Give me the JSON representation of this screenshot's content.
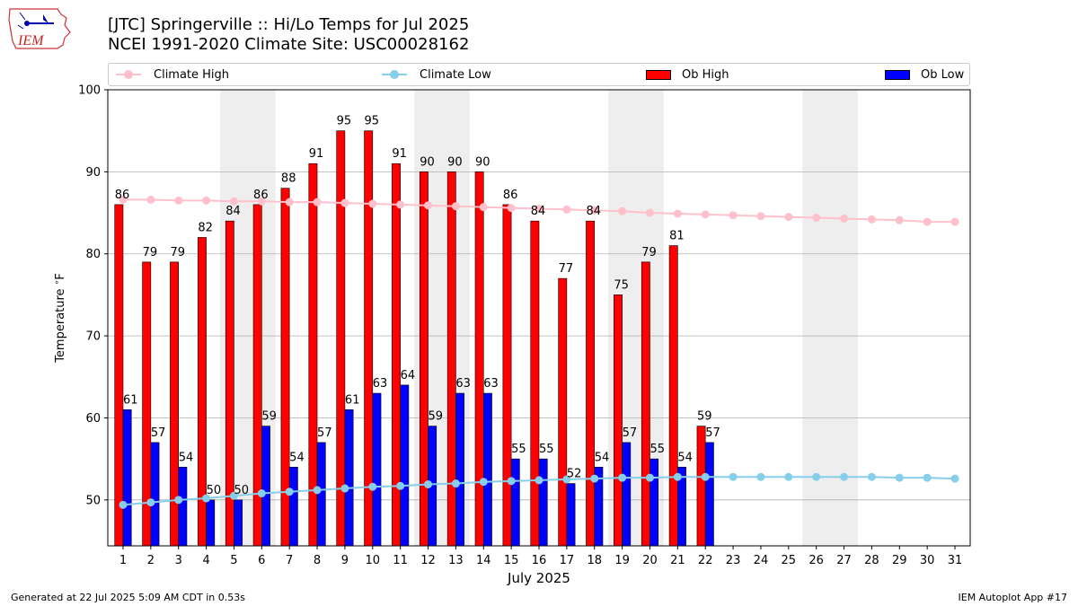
{
  "header": {
    "title_line1": "[JTC] Springerville :: Hi/Lo Temps for Jul 2025",
    "title_line2": "NCEI 1991-2020 Climate Site: USC00028162",
    "logo_text": "IEM"
  },
  "legend": {
    "climate_high": "Climate High",
    "climate_low": "Climate Low",
    "ob_high": "Ob High",
    "ob_low": "Ob Low"
  },
  "footer": {
    "generated": "Generated at 22 Jul 2025 5:09 AM CDT in 0.53s",
    "app": "IEM Autoplot App #17"
  },
  "colors": {
    "ob_high": "#ff0000",
    "ob_low": "#0000ff",
    "climate_high": "#ffc0cb",
    "climate_low": "#87ceeb",
    "weekend_shade": "#eeeeee",
    "grid": "#b0b0b0"
  },
  "chart_data": {
    "type": "bar",
    "title": "[JTC] Springerville :: Hi/Lo Temps for Jul 2025",
    "xlabel": "July 2025",
    "ylabel": "Temperature $^\\circ$F",
    "ylim": [
      44.4,
      100
    ],
    "yticks": [
      50,
      60,
      70,
      80,
      90,
      100
    ],
    "grid": "y",
    "legend_position": "top",
    "days": [
      1,
      2,
      3,
      4,
      5,
      6,
      7,
      8,
      9,
      10,
      11,
      12,
      13,
      14,
      15,
      16,
      17,
      18,
      19,
      20,
      21,
      22,
      23,
      24,
      25,
      26,
      27,
      28,
      29,
      30,
      31
    ],
    "shaded_days": [
      [
        5,
        6
      ],
      [
        12,
        13
      ],
      [
        19,
        20
      ],
      [
        26,
        27
      ]
    ],
    "series": [
      {
        "name": "Ob High",
        "kind": "bar",
        "values": [
          86,
          79,
          79,
          82,
          84,
          86,
          88,
          91,
          95,
          95,
          91,
          90,
          90,
          90,
          86,
          84,
          77,
          84,
          75,
          79,
          81,
          59
        ]
      },
      {
        "name": "Ob Low",
        "kind": "bar",
        "values": [
          61,
          57,
          54,
          50,
          50,
          59,
          54,
          57,
          61,
          63,
          64,
          59,
          63,
          63,
          55,
          55,
          52,
          54,
          57,
          55,
          54,
          57
        ]
      },
      {
        "name": "Climate High",
        "kind": "line",
        "values": [
          86.6,
          86.6,
          86.5,
          86.5,
          86.4,
          86.4,
          86.3,
          86.3,
          86.2,
          86.1,
          86.0,
          85.9,
          85.8,
          85.7,
          85.6,
          85.5,
          85.4,
          85.3,
          85.2,
          85.0,
          84.9,
          84.8,
          84.7,
          84.6,
          84.5,
          84.4,
          84.3,
          84.2,
          84.1,
          83.9,
          83.9
        ]
      },
      {
        "name": "Climate Low",
        "kind": "line",
        "values": [
          49.4,
          49.7,
          50.0,
          50.2,
          50.5,
          50.8,
          51.0,
          51.2,
          51.4,
          51.6,
          51.7,
          51.9,
          52.0,
          52.2,
          52.3,
          52.4,
          52.5,
          52.6,
          52.7,
          52.7,
          52.8,
          52.8,
          52.8,
          52.8,
          52.8,
          52.8,
          52.8,
          52.8,
          52.7,
          52.7,
          52.6
        ]
      }
    ]
  }
}
